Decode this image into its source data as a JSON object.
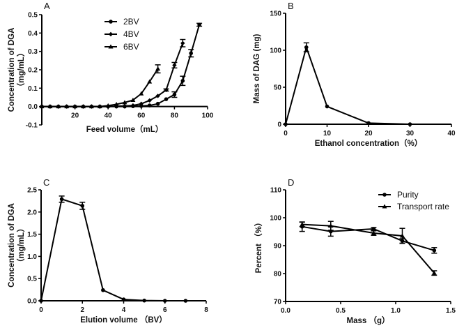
{
  "chart_data": [
    {
      "type": "line",
      "panel_label": "A",
      "xlabel": "Feed volume（mL）",
      "ylabel": [
        "Concentration of DGA",
        "（mg/mL）"
      ],
      "xlim": [
        0,
        100
      ],
      "ylim": [
        -0.1,
        0.5
      ],
      "xticks": [
        "20",
        "40",
        "60",
        "80",
        "100"
      ],
      "yticks": [
        "-0.1",
        "0.0",
        "0.1",
        "0.2",
        "0.3",
        "0.4",
        "0.5"
      ],
      "legend_position": "top-center",
      "series": [
        {
          "name": "2BV",
          "marker": "circle",
          "x": [
            0,
            5,
            10,
            15,
            20,
            25,
            30,
            35,
            40,
            45,
            50,
            55,
            60,
            65,
            70,
            75,
            80,
            85,
            90,
            95
          ],
          "y": [
            0,
            0,
            0,
            0,
            0,
            0,
            0,
            0,
            0,
            0,
            0,
            0.002,
            0.003,
            0.006,
            0.015,
            0.04,
            0.065,
            0.14,
            0.29,
            0.445
          ],
          "err": [
            0,
            0,
            0,
            0,
            0,
            0,
            0,
            0,
            0,
            0,
            0,
            0,
            0,
            0,
            0,
            0,
            0.015,
            0.025,
            0.02,
            0.008
          ]
        },
        {
          "name": "4BV",
          "marker": "diamond",
          "x": [
            0,
            5,
            10,
            15,
            20,
            25,
            30,
            35,
            40,
            45,
            50,
            55,
            60,
            65,
            70,
            75,
            80,
            85
          ],
          "y": [
            0,
            0,
            0,
            0,
            0,
            0,
            0,
            0,
            0,
            0.002,
            0.003,
            0.006,
            0.015,
            0.033,
            0.058,
            0.09,
            0.225,
            0.345
          ],
          "err": [
            0,
            0,
            0,
            0,
            0,
            0,
            0,
            0,
            0,
            0,
            0,
            0,
            0,
            0,
            0,
            0.006,
            0.015,
            0.02
          ]
        },
        {
          "name": "6BV",
          "marker": "triangle",
          "x": [
            0,
            5,
            10,
            15,
            20,
            25,
            30,
            35,
            40,
            45,
            50,
            55,
            60,
            65,
            70
          ],
          "y": [
            0,
            0,
            0,
            0,
            0,
            0,
            0,
            0,
            0.005,
            0.012,
            0.022,
            0.035,
            0.07,
            0.135,
            0.205
          ],
          "err": [
            0,
            0,
            0,
            0,
            0,
            0,
            0,
            0,
            0,
            0,
            0,
            0,
            0,
            0,
            0.022
          ]
        }
      ]
    },
    {
      "type": "line",
      "panel_label": "B",
      "xlabel": "Ethanol concentration（%）",
      "ylabel": [
        "Mass of DAG (mg)"
      ],
      "xlim": [
        0,
        40
      ],
      "ylim": [
        0,
        150
      ],
      "xticks": [
        "0",
        "10",
        "20",
        "30",
        "40"
      ],
      "yticks": [
        "0",
        "50",
        "100",
        "150"
      ],
      "series": [
        {
          "name": "DAG",
          "marker": "circle",
          "x": [
            0,
            5,
            10,
            20,
            30
          ],
          "y": [
            0,
            104,
            24,
            1.5,
            0
          ],
          "err": [
            0,
            6,
            0,
            0,
            0
          ]
        }
      ]
    },
    {
      "type": "line",
      "panel_label": "C",
      "xlabel": "Elution volume （BV）",
      "ylabel": [
        "Concentration of DGA",
        "（mg/mL）"
      ],
      "xlim": [
        0,
        8
      ],
      "ylim": [
        0,
        2.5
      ],
      "xticks": [
        "0",
        "2",
        "4",
        "6",
        "8"
      ],
      "yticks": [
        "0.0",
        "0.5",
        "1.0",
        "1.5",
        "2.0",
        "2.5"
      ],
      "series": [
        {
          "name": "DGA",
          "marker": "circle",
          "x": [
            0,
            1,
            2,
            3,
            4,
            5,
            6,
            7
          ],
          "y": [
            0,
            2.29,
            2.14,
            0.24,
            0.03,
            0.005,
            0,
            0
          ],
          "err": [
            0,
            0.07,
            0.08,
            0,
            0,
            0,
            0,
            0
          ]
        }
      ]
    },
    {
      "type": "line",
      "panel_label": "D",
      "xlabel": "Mass （g）",
      "ylabel": [
        "Percent （%）"
      ],
      "xlim": [
        0,
        1.5
      ],
      "ylim": [
        70,
        110
      ],
      "xticks": [
        "0.0",
        "0.5",
        "1.0",
        "1.5"
      ],
      "yticks": [
        "70",
        "80",
        "90",
        "100",
        "110"
      ],
      "legend_position": "top-right",
      "series": [
        {
          "name": "Purity",
          "marker": "circle",
          "x": [
            0.15,
            0.41,
            0.8,
            1.06,
            1.35
          ],
          "y": [
            96.8,
            95.1,
            96.0,
            91.7,
            88.3
          ],
          "err": [
            1.7,
            1.7,
            0.5,
            0.8,
            1.0
          ]
        },
        {
          "name": "Transport rate",
          "marker": "triangle",
          "x": [
            0.15,
            0.41,
            0.8,
            1.06,
            1.35
          ],
          "y": [
            97.6,
            97.1,
            94.5,
            93.5,
            80.2
          ],
          "err": [
            0.8,
            1.6,
            0.8,
            2.7,
            0.8
          ]
        }
      ]
    }
  ]
}
